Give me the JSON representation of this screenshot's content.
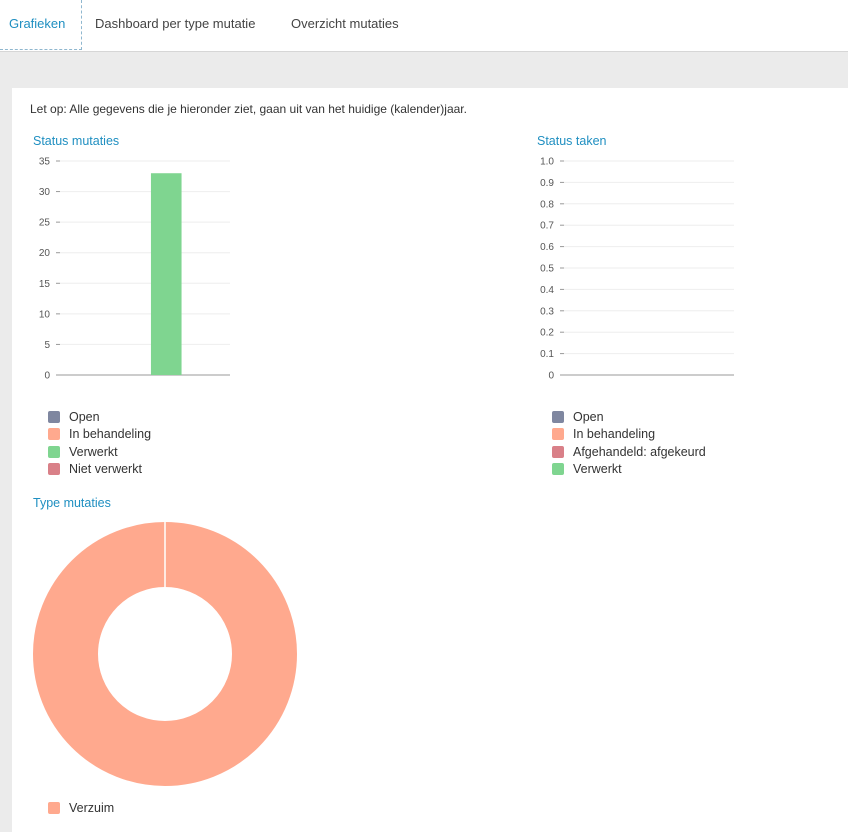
{
  "tabs": [
    {
      "label": "Grafieken",
      "active": true
    },
    {
      "label": "Dashboard per type mutatie",
      "active": false
    },
    {
      "label": "Overzicht mutaties",
      "active": false
    }
  ],
  "notice": "Let op: Alle gegevens die je hieronder ziet, gaan uit van het huidige (kalender)jaar.",
  "colors": {
    "accent": "#1f8fc1",
    "open": "#7f87a0",
    "in_behandeling": "#ffa98e",
    "verwerkt": "#7fd590",
    "niet_verwerkt": "#d98088",
    "afgekeurd": "#d98088"
  },
  "status_mutaties": {
    "title": "Status mutaties",
    "legend": [
      "Open",
      "In behandeling",
      "Verwerkt",
      "Niet verwerkt"
    ],
    "legend_colors": [
      "#7f87a0",
      "#ffa98e",
      "#7fd590",
      "#d98088"
    ]
  },
  "status_taken": {
    "title": "Status taken",
    "legend": [
      "Open",
      "In behandeling",
      "Afgehandeld: afgekeurd",
      "Verwerkt"
    ],
    "legend_colors": [
      "#7f87a0",
      "#ffa98e",
      "#d98088",
      "#7fd590"
    ]
  },
  "type_mutaties": {
    "title": "Type mutaties",
    "legend": [
      "Verzuim"
    ],
    "legend_colors": [
      "#ffa98e"
    ]
  },
  "chart_data": [
    {
      "type": "bar",
      "title": "Status mutaties",
      "categories": [
        "Open",
        "In behandeling",
        "Verwerkt",
        "Niet verwerkt"
      ],
      "values": [
        0,
        0,
        33,
        0
      ],
      "ylim": [
        0,
        35
      ],
      "yticks": [
        "0",
        "5",
        "10",
        "15",
        "20",
        "25",
        "30",
        "35"
      ],
      "grid": true,
      "legend": "bottom"
    },
    {
      "type": "bar",
      "title": "Status taken",
      "categories": [
        "Open",
        "In behandeling",
        "Afgehandeld: afgekeurd",
        "Verwerkt"
      ],
      "values": [
        0,
        0,
        0,
        0
      ],
      "ylim": [
        0,
        1
      ],
      "yticks": [
        "0",
        "0.1",
        "0.2",
        "0.3",
        "0.4",
        "0.5",
        "0.6",
        "0.7",
        "0.8",
        "0.9",
        "1.0"
      ],
      "grid": true,
      "legend": "bottom"
    },
    {
      "type": "pie",
      "title": "Type mutaties",
      "categories": [
        "Verzuim"
      ],
      "values": [
        1
      ],
      "donut": true,
      "legend": "bottom"
    }
  ]
}
